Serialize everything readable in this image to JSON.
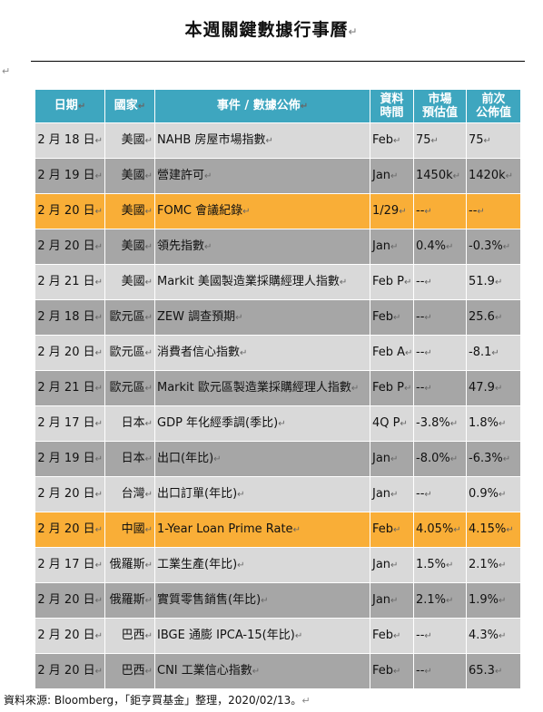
{
  "title": "本週關鍵數據行事曆",
  "paragraph_mark": "↵",
  "headers": {
    "date": "日期",
    "country": "國家",
    "event": "事件 / 數據公佈",
    "period_1": "資料",
    "period_2": "時間",
    "forecast_1": "市場",
    "forecast_2": "預估值",
    "previous_1": "前次",
    "previous_2": "公佈值"
  },
  "rows": [
    {
      "date": "2 月 18 日",
      "country": "美國",
      "event": "NAHB 房屋市場指數",
      "period": "Feb",
      "forecast": "75",
      "previous": "75",
      "style": "light"
    },
    {
      "date": "2 月 19 日",
      "country": "美國",
      "event": "營建許可",
      "period": "Jan",
      "forecast": "1450k",
      "previous": "1420k",
      "style": "dark"
    },
    {
      "date": "2 月 20 日",
      "country": "美國",
      "event": "FOMC 會議紀錄",
      "period": "1/29",
      "forecast": "--",
      "previous": "--",
      "style": "hl"
    },
    {
      "date": "2 月 20 日",
      "country": "美國",
      "event": "領先指數",
      "period": "Jan",
      "forecast": "0.4%",
      "previous": "-0.3%",
      "style": "dark"
    },
    {
      "date": "2 月 21 日",
      "country": "美國",
      "event": "Markit 美國製造業採購經理人指數",
      "period": "Feb P",
      "forecast": "--",
      "previous": "51.9",
      "style": "light"
    },
    {
      "date": "2 月 18 日",
      "country": "歐元區",
      "event": "ZEW 調查預期",
      "period": "Feb",
      "forecast": "--",
      "previous": "25.6",
      "style": "dark"
    },
    {
      "date": "2 月 20 日",
      "country": "歐元區",
      "event": "消費者信心指數",
      "period": "Feb A",
      "forecast": "--",
      "previous": "-8.1",
      "style": "light"
    },
    {
      "date": "2 月 21 日",
      "country": "歐元區",
      "event": "Markit 歐元區製造業採購經理人指數",
      "period": "Feb P",
      "forecast": "--",
      "previous": "47.9",
      "style": "dark"
    },
    {
      "date": "2 月 17 日",
      "country": "日本",
      "event": "GDP 年化經季調(季比)",
      "period": "4Q P",
      "forecast": "-3.8%",
      "previous": "1.8%",
      "style": "light"
    },
    {
      "date": "2 月 19 日",
      "country": "日本",
      "event": "出口(年比)",
      "period": "Jan",
      "forecast": "-8.0%",
      "previous": "-6.3%",
      "style": "dark"
    },
    {
      "date": "2 月 20 日",
      "country": "台灣",
      "event": "出口訂單(年比)",
      "period": "Jan",
      "forecast": "--",
      "previous": "0.9%",
      "style": "light"
    },
    {
      "date": "2 月 20 日",
      "country": "中國",
      "event": "1-Year Loan Prime Rate",
      "period": "Feb",
      "forecast": "4.05%",
      "previous": "4.15%",
      "style": "hl"
    },
    {
      "date": "2 月 17 日",
      "country": "俄羅斯",
      "event": "工業生產(年比)",
      "period": "Jan",
      "forecast": "1.5%",
      "previous": "2.1%",
      "style": "light"
    },
    {
      "date": "2 月 20 日",
      "country": "俄羅斯",
      "event": "實質零售銷售(年比)",
      "period": "Jan",
      "forecast": "2.1%",
      "previous": "1.9%",
      "style": "dark"
    },
    {
      "date": "2 月 20 日",
      "country": "巴西",
      "event": "IBGE 通膨 IPCA-15(年比)",
      "period": "Feb",
      "forecast": "--",
      "previous": "4.3%",
      "style": "light"
    },
    {
      "date": "2 月 20 日",
      "country": "巴西",
      "event": "CNI 工業信心指數",
      "period": "Feb",
      "forecast": "--",
      "previous": "65.3",
      "style": "dark"
    }
  ],
  "source": "資料來源: Bloomberg，「鉅亨買基金」整理，2020/02/13。"
}
